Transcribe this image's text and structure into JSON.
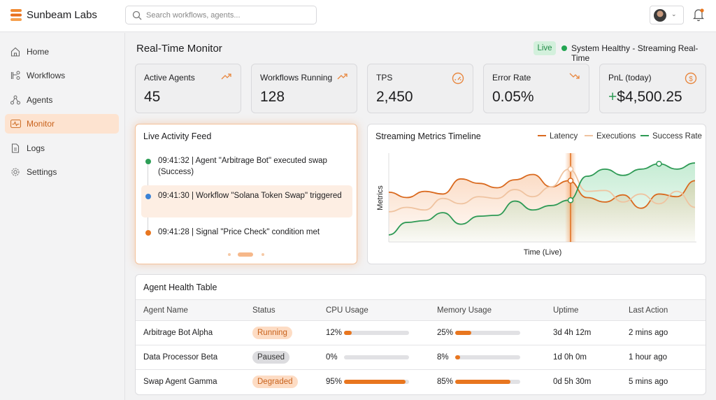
{
  "header": {
    "brand": "Sunbeam Labs",
    "search_placeholder": "Search workflows, agents...",
    "notification_badge": true
  },
  "sidebar": {
    "items": [
      {
        "label": "Home",
        "icon": "home-icon"
      },
      {
        "label": "Workflows",
        "icon": "workflow-icon"
      },
      {
        "label": "Agents",
        "icon": "agents-icon"
      },
      {
        "label": "Monitor",
        "icon": "activity-icon",
        "active": true
      },
      {
        "label": "Logs",
        "icon": "file-icon"
      },
      {
        "label": "Settings",
        "icon": "gear-icon"
      }
    ]
  },
  "main": {
    "title": "Real-Time Monitor",
    "live_badge": "Live",
    "status": "System Healthy - Streaming Real-Time",
    "kpis": [
      {
        "label": "Active Agents",
        "value": "45",
        "icon": "trending-up-icon"
      },
      {
        "label": "Workflows Running",
        "value": "128",
        "icon": "trending-up-icon"
      },
      {
        "label": "TPS",
        "value": "2,450",
        "icon": "gauge-icon"
      },
      {
        "label": "Error Rate",
        "value": "0.05%",
        "icon": "trending-down-icon"
      },
      {
        "label": "PnL (today)",
        "value_sign": "+",
        "value": "$4,500.25",
        "icon": "dollar-icon"
      }
    ],
    "feed": {
      "title": "Live Activity Feed",
      "items": [
        {
          "time": "09:41:32",
          "text": "Agent \"Arbitrage Bot\" executed swap (Success)",
          "color": "#2e9e57"
        },
        {
          "time": "09:41:30",
          "text": "Workflow \"Solana Token Swap\" triggered",
          "color": "#3b82d6"
        },
        {
          "time": "09:41:28",
          "text": "Signal \"Price Check\" condition met",
          "color": "#e8761f"
        }
      ]
    },
    "table": {
      "title": "Agent Health Table",
      "columns": [
        "Agent Name",
        "Status",
        "CPU Usage",
        "Memory Usage",
        "Uptime",
        "Last Action"
      ],
      "rows": [
        {
          "name": "Arbitrage Bot Alpha",
          "status": "Running",
          "cpu": 12,
          "cpu_label": "12%",
          "mem": 25,
          "mem_label": "25%",
          "uptime": "3d 4h 12m",
          "last": "2 mins ago"
        },
        {
          "name": "Data Processor Beta",
          "status": "Paused",
          "cpu": 0,
          "cpu_label": "0%",
          "mem": 8,
          "mem_label": "8%",
          "uptime": "1d 0h 0m",
          "last": "1 hour ago"
        },
        {
          "name": "Swap Agent Gamma",
          "status": "Degraded",
          "cpu": 95,
          "cpu_label": "95%",
          "mem": 85,
          "mem_label": "85%",
          "uptime": "0d 5h 30m",
          "last": "5 mins ago"
        }
      ]
    }
  },
  "chart_data": {
    "type": "line",
    "title": "Streaming Metrics Timeline",
    "xlabel": "Time (Live)",
    "ylabel": "Metrics",
    "legend": "top-right",
    "grid": false,
    "series": [
      {
        "name": "Latency",
        "color": "#d9691e",
        "values": [
          56,
          50,
          57,
          54,
          71,
          66,
          61,
          70,
          76,
          62,
          69,
          50,
          45,
          53,
          38,
          54,
          51,
          69
        ]
      },
      {
        "name": "Executions",
        "color": "#efc3a0",
        "values": [
          34,
          39,
          36,
          49,
          43,
          51,
          49,
          59,
          51,
          62,
          82,
          57,
          58,
          45,
          54,
          43,
          57,
          39
        ]
      },
      {
        "name": "Success Rate",
        "color": "#2e9a55",
        "values": [
          8,
          22,
          24,
          33,
          20,
          29,
          30,
          46,
          36,
          41,
          47,
          74,
          82,
          75,
          82,
          88,
          82,
          89
        ]
      }
    ]
  }
}
